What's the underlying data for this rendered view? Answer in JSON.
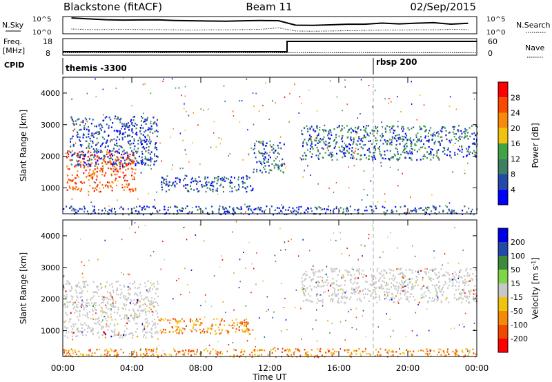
{
  "header": {
    "station": "Blackstone (fitACF)",
    "beam": "Beam 11",
    "date": "02/Sep/2015"
  },
  "panels": {
    "nsky": {
      "label": "N.Sky",
      "tick_top": "10^5",
      "tick_bottom": "10^0",
      "right_label": "N.Search",
      "right_tick_top": "10^5",
      "right_tick_bottom": "10^0"
    },
    "freq": {
      "label_line1": "Freq.",
      "label_line2": "[MHz]",
      "tick_top": "18",
      "tick_bottom": "8",
      "right_label": "Nave",
      "right_tick_top": "60",
      "right_tick_bottom": "0"
    },
    "cpid": {
      "label": "CPID",
      "programs": [
        "themis -3300",
        "rbsp 200"
      ]
    }
  },
  "colors": {
    "power": [
      "#0000ff",
      "#224aa8",
      "#3d7f62",
      "#41a343",
      "#f2c30e",
      "#f78a0a",
      "#fa4a00",
      "#ff0000"
    ],
    "velocity": [
      "#ff0000",
      "#f04a00",
      "#f58a08",
      "#f2c30e",
      "#c8c8c8",
      "#7fd447",
      "#3d8a3d",
      "#224aa8",
      "#0000e6"
    ],
    "ground_scatter": "#c8c8c8"
  },
  "chart_data": [
    {
      "type": "heatmap",
      "name": "power-panel",
      "xlabel": "",
      "ylabel": "Slant Range [km]",
      "x_ticks": [
        "00:00",
        "04:00",
        "08:00",
        "12:00",
        "16:00",
        "20:00",
        "00:00"
      ],
      "x_range_hours": [
        0,
        24
      ],
      "y_ticks": [
        1000,
        2000,
        3000,
        4000
      ],
      "ylim": [
        180,
        4500
      ],
      "colorbar": {
        "label": "Power [dB]",
        "ticks": [
          4,
          8,
          12,
          16,
          20,
          24,
          28
        ],
        "range": [
          0,
          32
        ]
      },
      "regions": [
        {
          "t": [
            0.2,
            4.2
          ],
          "r": [
            900,
            2200
          ],
          "level": "strong",
          "note": ""
        },
        {
          "t": [
            0.4,
            5.5
          ],
          "r": [
            1700,
            3300
          ],
          "level": "weak"
        },
        {
          "t": [
            5.5,
            11.0
          ],
          "r": [
            900,
            1400
          ],
          "level": "weak"
        },
        {
          "t": [
            0.0,
            24.0
          ],
          "r": [
            180,
            450
          ],
          "level": "weak"
        },
        {
          "t": [
            11.0,
            12.8
          ],
          "r": [
            1500,
            2500
          ],
          "level": "mixed"
        },
        {
          "t": [
            13.8,
            24.0
          ],
          "r": [
            1900,
            3000
          ],
          "level": "mixed"
        }
      ]
    },
    {
      "type": "heatmap",
      "name": "velocity-panel",
      "xlabel": "Time UT",
      "ylabel": "Slant Range [km]",
      "x_ticks": [
        "00:00",
        "04:00",
        "08:00",
        "12:00",
        "16:00",
        "20:00",
        "00:00"
      ],
      "x_range_hours": [
        0,
        24
      ],
      "y_ticks": [
        1000,
        2000,
        3000,
        4000
      ],
      "ylim": [
        180,
        4500
      ],
      "colorbar": {
        "label": "Velocity [m s^-1]",
        "ticks": [
          200,
          100,
          50,
          15,
          -15,
          -50,
          -100,
          -200
        ]
      },
      "regions": [
        {
          "t": [
            0.0,
            5.5
          ],
          "r": [
            800,
            2600
          ],
          "level": "ground"
        },
        {
          "t": [
            5.5,
            11.0
          ],
          "r": [
            900,
            1400
          ],
          "level": "negative"
        },
        {
          "t": [
            0.0,
            24.0
          ],
          "r": [
            180,
            450
          ],
          "level": "negative"
        },
        {
          "t": [
            13.8,
            24.0
          ],
          "r": [
            1900,
            3000
          ],
          "level": "ground"
        }
      ]
    },
    {
      "type": "line",
      "name": "nsky-nsearch",
      "series": [
        {
          "name": "N.Sky",
          "values": [
            5.2,
            4.6,
            4.5,
            4.4,
            4.3,
            4.4,
            4.2,
            4.0,
            3.9,
            3.9,
            4.0,
            4.1,
            4.0,
            2.6,
            2.5,
            2.6,
            2.8,
            3.0,
            3.2,
            3.0,
            3.1,
            3.3,
            3.0,
            3.2
          ]
        },
        {
          "name": "N.Search",
          "values": [
            1.2,
            1.0,
            1.0,
            1.1,
            1.0,
            1.0,
            0.9,
            0.8,
            0.9,
            0.9,
            1.0,
            1.1,
            1.6,
            0.5,
            0.4,
            0.5,
            0.6,
            0.7,
            0.8,
            0.8,
            0.9,
            0.9,
            1.1,
            1.0
          ]
        }
      ]
    },
    {
      "type": "line",
      "name": "freq-nave",
      "series": [
        {
          "name": "Freq.",
          "x": [
            0,
            13.0,
            13.0,
            24
          ],
          "values": [
            10,
            10,
            17.5,
            17.5
          ]
        },
        {
          "name": "Nave",
          "x": [
            0,
            24
          ],
          "values": [
            2,
            2
          ]
        }
      ]
    }
  ],
  "time_axis_label": "Time UT"
}
